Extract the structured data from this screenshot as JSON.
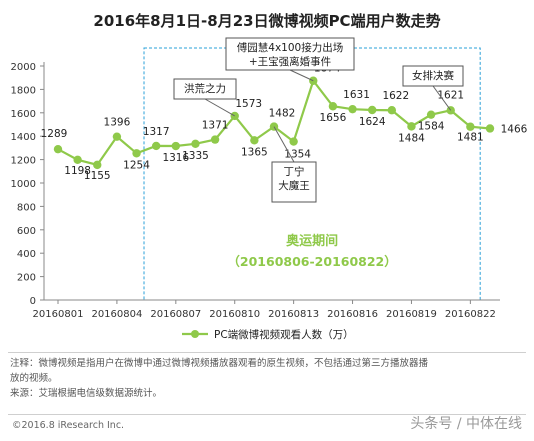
{
  "chart_data": {
    "type": "line",
    "title": "2016年8月1日-8月23日微博视频PC端用户数走势",
    "ylim": [
      0,
      2000
    ],
    "yticks": [
      0,
      200,
      400,
      600,
      800,
      1000,
      1200,
      1400,
      1600,
      1800,
      2000
    ],
    "x_tick_labels": [
      "20160801",
      "20160804",
      "20160807",
      "20160810",
      "20160813",
      "20160816",
      "20160819",
      "20160822"
    ],
    "x": [
      "20160801",
      "20160802",
      "20160803",
      "20160804",
      "20160805",
      "20160806",
      "20160807",
      "20160808",
      "20160809",
      "20160810",
      "20160811",
      "20160812",
      "20160813",
      "20160814",
      "20160815",
      "20160816",
      "20160817",
      "20160818",
      "20160819",
      "20160820",
      "20160821",
      "20160822",
      "20160823"
    ],
    "series": [
      {
        "name": "PC端微博视频观看人数（万）",
        "values": [
          1289,
          1198,
          1155,
          1396,
          1254,
          1317,
          1316,
          1335,
          1371,
          1573,
          1365,
          1482,
          1354,
          1874,
          1656,
          1631,
          1624,
          1622,
          1484,
          1584,
          1621,
          1481,
          1466
        ]
      }
    ],
    "legend_position": "bottom",
    "color": "#8fc94a",
    "grid": false,
    "annotations": [
      {
        "text": "洪荒之力",
        "x": "20160810"
      },
      {
        "text": "丁宁\n大魔王",
        "x": "20160812"
      },
      {
        "text": "傅园慧4x100接力出场\n+王宝强离婚事件",
        "x": "20160814"
      },
      {
        "text": "女排决赛",
        "x": "20160821"
      }
    ],
    "highlight": {
      "label": "奥运期间",
      "range_label": "（20160806-20160822）",
      "from": "20160806",
      "to": "20160822"
    }
  },
  "notes": [
    "注释：微博视频是指用户在微博中通过微博视频播放器观看的原生视频，不包括通过第三方播放器播",
    "放的视频。",
    "来源：艾瑞根据电信级数据源统计。"
  ],
  "footer": {
    "copyright": "©2016.8 iResearch Inc.",
    "watermark": "头条号 / 中体在线"
  }
}
